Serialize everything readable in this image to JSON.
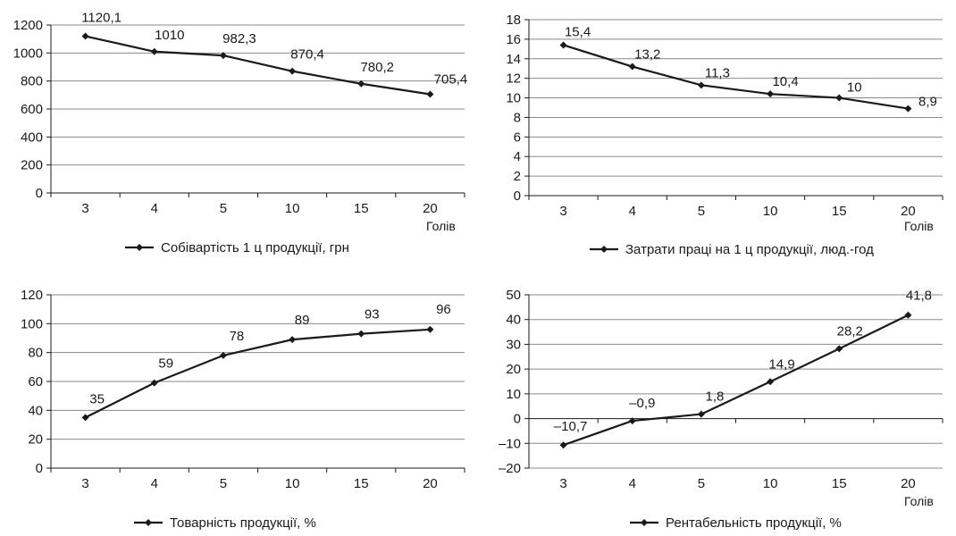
{
  "chart_data": [
    {
      "type": "line",
      "categories": [
        "3",
        "4",
        "5",
        "10",
        "15",
        "20"
      ],
      "xlabel": "Голів",
      "series": [
        {
          "name": "Собівартість 1 ц продукції, грн",
          "values": [
            1120.1,
            1010,
            982.3,
            870.4,
            780.2,
            705.4
          ]
        }
      ],
      "data_labels": [
        "1120,1",
        "1010",
        "982,3",
        "870,4",
        "780,2",
        "705,4"
      ],
      "ylim": [
        0,
        1200
      ],
      "yticks": [
        0,
        200,
        400,
        600,
        800,
        1000,
        1200
      ],
      "ytick_labels": [
        "0",
        "200",
        "400",
        "600",
        "800",
        "1000",
        "1200"
      ],
      "grid": true,
      "legend": "bottom",
      "line_color": "#1a1a1a"
    },
    {
      "type": "line",
      "categories": [
        "3",
        "4",
        "5",
        "10",
        "15",
        "20"
      ],
      "xlabel": "Голів",
      "series": [
        {
          "name": "Затрати праці на 1 ц продукції, люд.-год",
          "values": [
            15.4,
            13.2,
            11.3,
            10.4,
            10,
            8.9
          ]
        }
      ],
      "data_labels": [
        "15,4",
        "13,2",
        "11,3",
        "10,4",
        "10",
        "8,9"
      ],
      "ylim": [
        0,
        18
      ],
      "yticks": [
        0,
        2,
        4,
        6,
        8,
        10,
        12,
        14,
        16,
        18
      ],
      "ytick_labels": [
        "0",
        "2",
        "4",
        "6",
        "8",
        "10",
        "12",
        "14",
        "16",
        "18"
      ],
      "grid": true,
      "legend": "bottom",
      "line_color": "#1a1a1a"
    },
    {
      "type": "line",
      "categories": [
        "3",
        "4",
        "5",
        "10",
        "15",
        "20"
      ],
      "xlabel": "",
      "series": [
        {
          "name": "Товарність продукції, %",
          "values": [
            35,
            59,
            78,
            89,
            93,
            96
          ]
        }
      ],
      "data_labels": [
        "35",
        "59",
        "78",
        "89",
        "93",
        "96"
      ],
      "ylim": [
        0,
        120
      ],
      "yticks": [
        0,
        20,
        40,
        60,
        80,
        100,
        120
      ],
      "ytick_labels": [
        "0",
        "20",
        "40",
        "60",
        "80",
        "100",
        "120"
      ],
      "grid": true,
      "legend": "bottom",
      "line_color": "#1a1a1a"
    },
    {
      "type": "line",
      "categories": [
        "3",
        "4",
        "5",
        "10",
        "15",
        "20"
      ],
      "xlabel": "Голів",
      "series": [
        {
          "name": "Рентабельність продукції, %",
          "values": [
            -10.7,
            -0.9,
            1.8,
            14.9,
            28.2,
            41.8
          ]
        }
      ],
      "data_labels": [
        "–10,7",
        "–0,9",
        "1,8",
        "14,9",
        "28,2",
        "41,8"
      ],
      "ylim": [
        -20,
        50
      ],
      "yticks": [
        -20,
        -10,
        0,
        10,
        20,
        30,
        40,
        50
      ],
      "ytick_labels": [
        "–20",
        "–10",
        "0",
        "10",
        "20",
        "30",
        "40",
        "50"
      ],
      "grid": true,
      "legend": "bottom",
      "line_color": "#1a1a1a"
    }
  ]
}
